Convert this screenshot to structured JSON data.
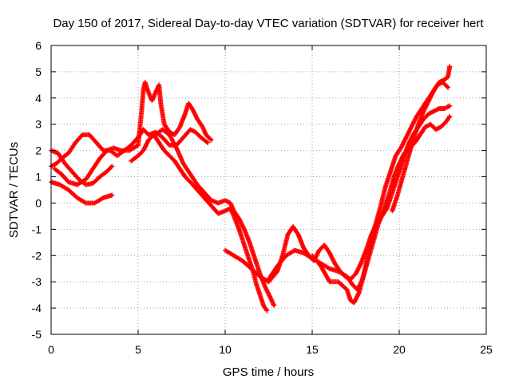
{
  "chart_data": {
    "type": "scatter",
    "title": "Day 150 of 2017, Sidereal Day-to-day VTEC variation (SDTVAR) for receiver hert",
    "xlabel": "GPS time / hours",
    "ylabel": "SDTVAR / TECUs",
    "xlim": [
      0,
      25
    ],
    "ylim": [
      -5,
      6
    ],
    "xticks": [
      0,
      5,
      10,
      15,
      20,
      25
    ],
    "yticks": [
      -5,
      -4,
      -3,
      -2,
      -1,
      0,
      1,
      2,
      3,
      4,
      5,
      6
    ],
    "grid": true,
    "marker": "+",
    "color": "#ff0000",
    "series": [
      {
        "points": [
          [
            0,
            2.0
          ],
          [
            0.4,
            1.9
          ],
          [
            0.8,
            1.5
          ],
          [
            1.2,
            1.2
          ],
          [
            1.6,
            0.9
          ],
          [
            2.0,
            0.7
          ],
          [
            2.4,
            0.75
          ],
          [
            2.8,
            1.0
          ],
          [
            3.2,
            1.2
          ],
          [
            3.5,
            1.4
          ]
        ]
      },
      {
        "points": [
          [
            0,
            1.4
          ],
          [
            0.3,
            1.5
          ],
          [
            0.6,
            1.7
          ],
          [
            1.0,
            1.9
          ],
          [
            1.4,
            2.3
          ],
          [
            1.8,
            2.6
          ],
          [
            2.2,
            2.6
          ],
          [
            2.6,
            2.3
          ],
          [
            3.0,
            2.0
          ],
          [
            3.4,
            2.0
          ],
          [
            3.8,
            1.8
          ],
          [
            4.2,
            2.0
          ],
          [
            4.6,
            2.2
          ],
          [
            5.0,
            2.5
          ],
          [
            5.3,
            2.8
          ],
          [
            5.6,
            2.6
          ],
          [
            6.0,
            2.7
          ],
          [
            6.4,
            2.5
          ],
          [
            6.8,
            2.2
          ],
          [
            7.2,
            2.2
          ],
          [
            7.6,
            2.5
          ],
          [
            8.0,
            2.8
          ],
          [
            8.3,
            2.7
          ],
          [
            8.6,
            2.5
          ],
          [
            9.0,
            2.3
          ]
        ]
      },
      {
        "points": [
          [
            0,
            0.8
          ],
          [
            0.5,
            0.7
          ],
          [
            1.0,
            0.5
          ],
          [
            1.5,
            0.2
          ],
          [
            2.0,
            0.0
          ],
          [
            2.5,
            0.0
          ],
          [
            3.0,
            0.2
          ],
          [
            3.5,
            0.3
          ]
        ]
      },
      {
        "points": [
          [
            0.2,
            1.3
          ],
          [
            0.6,
            1.1
          ],
          [
            1.0,
            0.8
          ],
          [
            1.5,
            0.7
          ],
          [
            2.0,
            0.9
          ],
          [
            2.4,
            1.3
          ],
          [
            2.8,
            1.7
          ],
          [
            3.2,
            2.0
          ],
          [
            3.6,
            2.1
          ],
          [
            4.0,
            2.0
          ],
          [
            4.5,
            2.0
          ],
          [
            5.0,
            2.2
          ],
          [
            5.2,
            3.5
          ],
          [
            5.3,
            4.3
          ],
          [
            5.4,
            4.6
          ],
          [
            5.6,
            4.2
          ],
          [
            5.8,
            3.9
          ],
          [
            6.0,
            4.2
          ],
          [
            6.2,
            4.5
          ],
          [
            6.3,
            3.8
          ],
          [
            6.5,
            3.0
          ],
          [
            6.8,
            2.7
          ],
          [
            7.1,
            2.6
          ],
          [
            7.4,
            2.9
          ],
          [
            7.7,
            3.4
          ],
          [
            7.9,
            3.8
          ],
          [
            8.1,
            3.6
          ],
          [
            8.4,
            3.2
          ],
          [
            8.7,
            2.9
          ],
          [
            8.9,
            2.6
          ],
          [
            9.2,
            2.4
          ]
        ]
      },
      {
        "points": [
          [
            4.6,
            1.6
          ],
          [
            5.0,
            1.8
          ],
          [
            5.3,
            2.0
          ],
          [
            5.6,
            2.4
          ],
          [
            5.9,
            2.6
          ],
          [
            6.2,
            2.3
          ],
          [
            6.5,
            2.0
          ],
          [
            6.8,
            1.8
          ],
          [
            7.1,
            1.6
          ],
          [
            7.4,
            1.3
          ],
          [
            7.7,
            1.0
          ],
          [
            8.0,
            0.8
          ],
          [
            8.4,
            0.5
          ],
          [
            8.8,
            0.2
          ],
          [
            9.2,
            -0.1
          ],
          [
            9.6,
            -0.4
          ],
          [
            10.0,
            -0.3
          ],
          [
            10.3,
            -0.2
          ],
          [
            10.5,
            -0.5
          ],
          [
            10.8,
            -1.0
          ],
          [
            11.0,
            -1.4
          ],
          [
            11.2,
            -1.8
          ],
          [
            11.4,
            -2.2
          ],
          [
            11.6,
            -2.6
          ],
          [
            11.8,
            -3.1
          ],
          [
            12.0,
            -3.5
          ],
          [
            12.2,
            -3.9
          ],
          [
            12.4,
            -4.1
          ]
        ]
      },
      {
        "points": [
          [
            6.0,
            2.6
          ],
          [
            6.4,
            2.8
          ],
          [
            6.8,
            2.6
          ],
          [
            7.2,
            2.1
          ],
          [
            7.6,
            1.5
          ],
          [
            8.0,
            1.1
          ],
          [
            8.4,
            0.7
          ],
          [
            8.8,
            0.4
          ],
          [
            9.2,
            0.1
          ],
          [
            9.6,
            0.0
          ],
          [
            10.0,
            0.1
          ],
          [
            10.3,
            0.0
          ],
          [
            10.5,
            -0.3
          ],
          [
            10.8,
            -0.6
          ],
          [
            11.1,
            -1.0
          ],
          [
            11.4,
            -1.5
          ],
          [
            11.7,
            -2.1
          ],
          [
            12.0,
            -2.7
          ],
          [
            12.3,
            -3.2
          ],
          [
            12.6,
            -3.6
          ],
          [
            12.8,
            -3.9
          ]
        ]
      },
      {
        "points": [
          [
            10.0,
            -1.8
          ],
          [
            10.5,
            -2.0
          ],
          [
            11.0,
            -2.2
          ],
          [
            11.5,
            -2.5
          ],
          [
            12.0,
            -2.8
          ],
          [
            12.5,
            -3.0
          ],
          [
            13.0,
            -2.6
          ],
          [
            13.3,
            -2.0
          ],
          [
            13.6,
            -1.2
          ],
          [
            13.9,
            -0.9
          ],
          [
            14.2,
            -1.2
          ],
          [
            14.5,
            -1.7
          ],
          [
            14.8,
            -2.0
          ],
          [
            15.1,
            -2.2
          ],
          [
            15.4,
            -1.8
          ],
          [
            15.7,
            -1.6
          ],
          [
            16.0,
            -1.9
          ],
          [
            16.3,
            -2.3
          ],
          [
            16.6,
            -2.6
          ],
          [
            16.9,
            -2.8
          ],
          [
            17.2,
            -2.9
          ],
          [
            17.5,
            -2.7
          ],
          [
            17.8,
            -2.3
          ],
          [
            18.1,
            -1.8
          ],
          [
            18.4,
            -1.2
          ],
          [
            18.7,
            -0.8
          ],
          [
            19.0,
            -0.5
          ],
          [
            19.3,
            -0.2
          ],
          [
            19.6,
            0.4
          ],
          [
            19.9,
            1.0
          ],
          [
            20.2,
            1.6
          ],
          [
            20.5,
            2.2
          ],
          [
            20.8,
            2.6
          ],
          [
            21.1,
            2.9
          ],
          [
            21.4,
            3.2
          ],
          [
            21.7,
            3.4
          ],
          [
            22.0,
            3.5
          ],
          [
            22.3,
            3.6
          ],
          [
            22.6,
            3.6
          ],
          [
            22.9,
            3.7
          ]
        ]
      },
      {
        "points": [
          [
            12.5,
            -2.9
          ],
          [
            13.0,
            -2.4
          ],
          [
            13.5,
            -2.0
          ],
          [
            14.0,
            -1.8
          ],
          [
            14.5,
            -1.9
          ],
          [
            15.0,
            -2.1
          ],
          [
            15.5,
            -2.3
          ],
          [
            16.0,
            -2.5
          ],
          [
            16.5,
            -2.6
          ],
          [
            17.0,
            -2.8
          ],
          [
            17.3,
            -3.1
          ],
          [
            17.6,
            -3.3
          ],
          [
            17.9,
            -2.9
          ],
          [
            18.2,
            -2.2
          ],
          [
            18.5,
            -1.5
          ],
          [
            18.8,
            -0.8
          ],
          [
            19.1,
            -0.3
          ],
          [
            19.4,
            0.3
          ],
          [
            19.7,
            1.0
          ],
          [
            20.0,
            1.5
          ],
          [
            20.3,
            1.9
          ],
          [
            20.6,
            2.1
          ],
          [
            20.9,
            2.3
          ],
          [
            21.2,
            2.6
          ],
          [
            21.5,
            2.9
          ],
          [
            21.8,
            3.0
          ],
          [
            22.1,
            2.8
          ],
          [
            22.4,
            2.9
          ],
          [
            22.7,
            3.1
          ],
          [
            22.9,
            3.3
          ]
        ]
      },
      {
        "points": [
          [
            15.0,
            -2.0
          ],
          [
            15.5,
            -2.4
          ],
          [
            16.0,
            -3.0
          ],
          [
            16.5,
            -3.0
          ],
          [
            17.0,
            -3.3
          ],
          [
            17.2,
            -3.7
          ],
          [
            17.4,
            -3.8
          ],
          [
            17.7,
            -3.4
          ],
          [
            18.0,
            -2.6
          ],
          [
            18.3,
            -1.7
          ],
          [
            18.6,
            -0.9
          ],
          [
            18.9,
            -0.2
          ],
          [
            19.2,
            0.6
          ],
          [
            19.5,
            1.2
          ],
          [
            19.8,
            1.8
          ],
          [
            20.1,
            2.1
          ],
          [
            20.4,
            2.5
          ],
          [
            20.7,
            2.9
          ],
          [
            21.0,
            3.3
          ],
          [
            21.3,
            3.6
          ],
          [
            21.6,
            3.9
          ],
          [
            21.9,
            4.2
          ],
          [
            22.2,
            4.5
          ],
          [
            22.5,
            4.6
          ],
          [
            22.8,
            4.4
          ]
        ]
      },
      {
        "points": [
          [
            19.6,
            -0.3
          ],
          [
            19.9,
            0.3
          ],
          [
            20.2,
            1.0
          ],
          [
            20.5,
            1.7
          ],
          [
            20.8,
            2.4
          ],
          [
            21.1,
            3.0
          ],
          [
            21.4,
            3.5
          ],
          [
            21.7,
            3.9
          ],
          [
            22.0,
            4.3
          ],
          [
            22.3,
            4.6
          ],
          [
            22.6,
            4.7
          ],
          [
            22.8,
            4.8
          ],
          [
            22.9,
            5.2
          ]
        ]
      }
    ]
  }
}
